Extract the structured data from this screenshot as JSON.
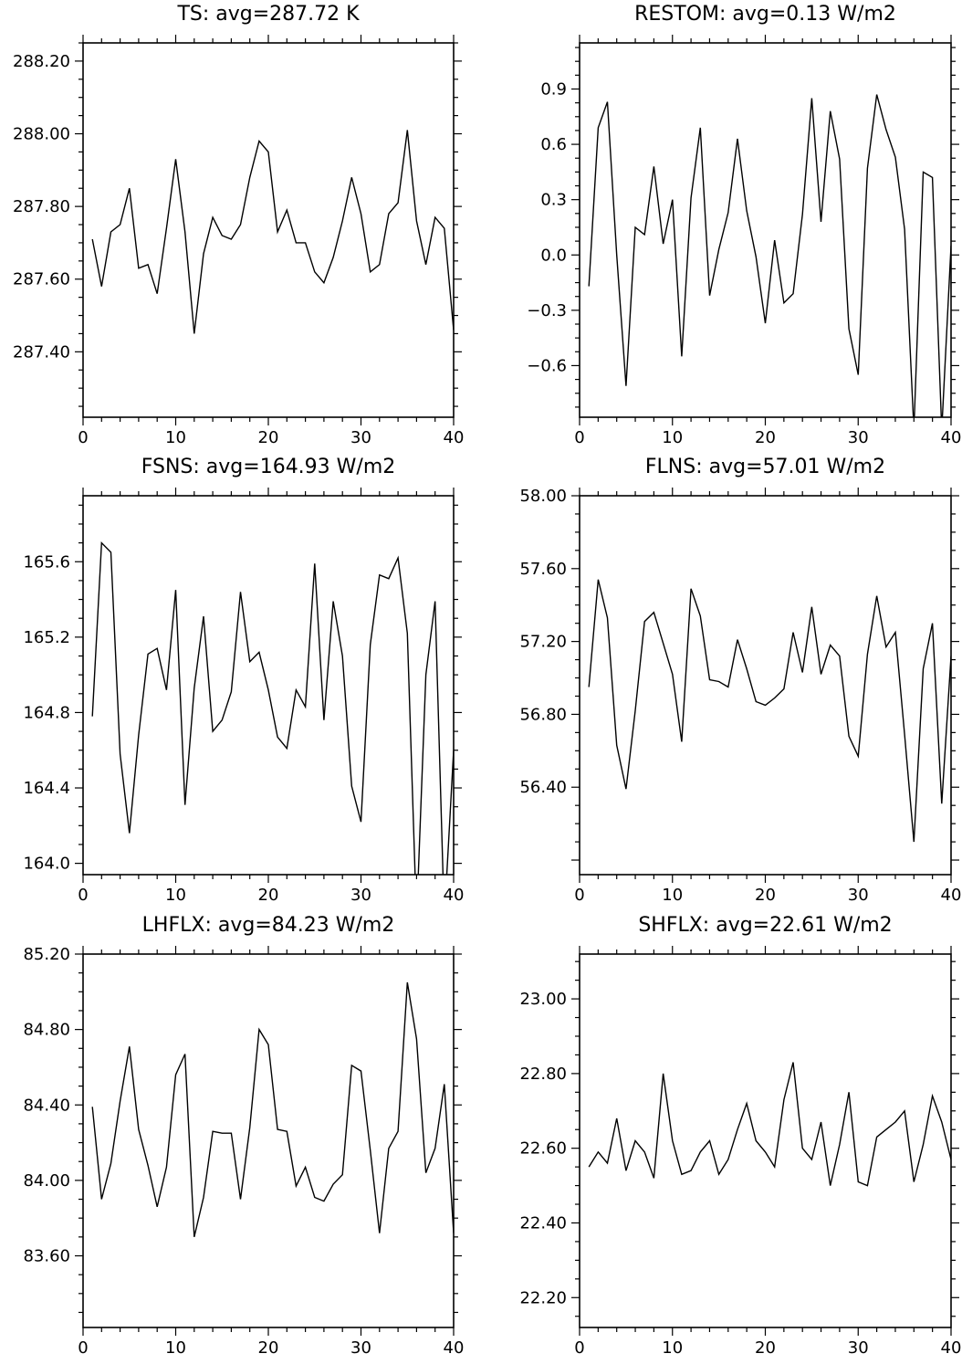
{
  "chart_data": [
    {
      "type": "line",
      "title": "TS: avg=287.72 K",
      "x": [
        1,
        2,
        3,
        4,
        5,
        6,
        7,
        8,
        9,
        10,
        11,
        12,
        13,
        14,
        15,
        16,
        17,
        18,
        19,
        20,
        21,
        22,
        23,
        24,
        25,
        26,
        27,
        28,
        29,
        30,
        31,
        32,
        33,
        34,
        35,
        36,
        37,
        38,
        39,
        40
      ],
      "values": [
        287.71,
        287.58,
        287.73,
        287.75,
        287.85,
        287.63,
        287.64,
        287.56,
        287.74,
        287.93,
        287.73,
        287.45,
        287.67,
        287.77,
        287.72,
        287.71,
        287.75,
        287.88,
        287.98,
        287.95,
        287.73,
        287.79,
        287.7,
        287.7,
        287.62,
        287.59,
        287.66,
        287.76,
        287.88,
        287.78,
        287.62,
        287.64,
        287.78,
        287.81,
        288.01,
        287.76,
        287.64,
        287.77,
        287.74,
        287.46
      ],
      "xlim": [
        0,
        40
      ],
      "ylim": [
        287.22,
        288.25
      ],
      "xticks": [
        0,
        10,
        20,
        30,
        40
      ],
      "xtick_labels": [
        "0",
        "10",
        "20",
        "30",
        "40"
      ],
      "yticks": [
        287.4,
        287.6,
        287.8,
        288.0,
        288.2
      ],
      "ytick_labels": [
        "287.40",
        "287.60",
        "287.80",
        "288.00",
        "288.20"
      ]
    },
    {
      "type": "line",
      "title": "RESTOM: avg=0.13 W/m2",
      "x": [
        1,
        2,
        3,
        4,
        5,
        6,
        7,
        8,
        9,
        10,
        11,
        12,
        13,
        14,
        15,
        16,
        17,
        18,
        19,
        20,
        21,
        22,
        23,
        24,
        25,
        26,
        27,
        28,
        29,
        30,
        31,
        32,
        33,
        34,
        35,
        36,
        37,
        38,
        39,
        40
      ],
      "values": [
        -0.17,
        0.69,
        0.83,
        0.0,
        -0.71,
        0.15,
        0.11,
        0.48,
        0.06,
        0.3,
        -0.55,
        0.31,
        0.69,
        -0.22,
        0.03,
        0.23,
        0.63,
        0.24,
        -0.01,
        -0.37,
        0.08,
        -0.26,
        -0.21,
        0.22,
        0.85,
        0.18,
        0.78,
        0.52,
        -0.4,
        -0.65,
        0.47,
        0.87,
        0.68,
        0.53,
        0.14,
        -0.95,
        0.45,
        0.42,
        -0.95,
        0.05
      ],
      "xlim": [
        0,
        40
      ],
      "ylim": [
        -0.88,
        1.15
      ],
      "xticks": [
        0,
        10,
        20,
        30,
        40
      ],
      "xtick_labels": [
        "0",
        "10",
        "20",
        "30",
        "40"
      ],
      "yticks": [
        -0.6,
        -0.3,
        0.0,
        0.3,
        0.6,
        0.9
      ],
      "ytick_labels": [
        "−0.6",
        "−0.3",
        "0.0",
        "0.3",
        "0.6",
        "0.9"
      ]
    },
    {
      "type": "line",
      "title": "FSNS: avg=164.93 W/m2",
      "x": [
        1,
        2,
        3,
        4,
        5,
        6,
        7,
        8,
        9,
        10,
        11,
        12,
        13,
        14,
        15,
        16,
        17,
        18,
        19,
        20,
        21,
        22,
        23,
        24,
        25,
        26,
        27,
        28,
        29,
        30,
        31,
        32,
        33,
        34,
        35,
        36,
        37,
        38,
        39,
        40
      ],
      "values": [
        164.78,
        165.7,
        165.65,
        164.58,
        164.16,
        164.68,
        165.11,
        165.14,
        164.92,
        165.45,
        164.31,
        164.93,
        165.31,
        164.7,
        164.76,
        164.91,
        165.44,
        165.07,
        165.12,
        164.92,
        164.67,
        164.61,
        164.92,
        164.83,
        165.59,
        164.76,
        165.39,
        165.1,
        164.41,
        164.22,
        165.16,
        165.53,
        165.51,
        165.62,
        165.22,
        163.7,
        165.0,
        165.39,
        163.7,
        164.6
      ],
      "xlim": [
        0,
        40
      ],
      "ylim": [
        163.94,
        165.95
      ],
      "xticks": [
        0,
        10,
        20,
        30,
        40
      ],
      "xtick_labels": [
        "0",
        "10",
        "20",
        "30",
        "40"
      ],
      "yticks": [
        164.0,
        164.4,
        164.8,
        165.2,
        165.6
      ],
      "ytick_labels": [
        "164.0",
        "164.4",
        "164.8",
        "165.2",
        "165.6"
      ]
    },
    {
      "type": "line",
      "title": "FLNS: avg=57.01 W/m2",
      "x": [
        1,
        2,
        3,
        4,
        5,
        6,
        7,
        8,
        9,
        10,
        11,
        12,
        13,
        14,
        15,
        16,
        17,
        18,
        19,
        20,
        21,
        22,
        23,
        24,
        25,
        26,
        27,
        28,
        29,
        30,
        31,
        32,
        33,
        34,
        35,
        36,
        37,
        38,
        39,
        40
      ],
      "values": [
        56.95,
        57.54,
        57.33,
        56.63,
        56.39,
        56.82,
        57.31,
        57.36,
        57.19,
        57.02,
        56.65,
        57.49,
        57.34,
        56.99,
        56.98,
        56.95,
        57.21,
        57.05,
        56.87,
        56.85,
        56.89,
        56.94,
        57.25,
        57.03,
        57.39,
        57.02,
        57.18,
        57.12,
        56.68,
        56.57,
        57.13,
        57.45,
        57.17,
        57.25,
        56.69,
        56.1,
        57.05,
        57.3,
        56.31,
        57.12
      ],
      "xlim": [
        0,
        40
      ],
      "ylim": [
        55.92,
        58.0
      ],
      "xticks": [
        0,
        10,
        20,
        30,
        40
      ],
      "xtick_labels": [
        "0",
        "10",
        "20",
        "30",
        "40"
      ],
      "yticks": [
        56.4,
        56.8,
        57.2,
        57.6,
        58.0
      ],
      "ytick_labels": [
        "56.40",
        "56.80",
        "57.20",
        "57.60",
        "58.00"
      ]
    },
    {
      "type": "line",
      "title": "LHFLX: avg=84.23 W/m2",
      "x": [
        1,
        2,
        3,
        4,
        5,
        6,
        7,
        8,
        9,
        10,
        11,
        12,
        13,
        14,
        15,
        16,
        17,
        18,
        19,
        20,
        21,
        22,
        23,
        24,
        25,
        26,
        27,
        28,
        29,
        30,
        31,
        32,
        33,
        34,
        35,
        36,
        37,
        38,
        39,
        40
      ],
      "values": [
        84.39,
        83.9,
        84.09,
        84.42,
        84.71,
        84.27,
        84.08,
        83.86,
        84.07,
        84.56,
        84.67,
        83.7,
        83.91,
        84.26,
        84.25,
        84.25,
        83.9,
        84.28,
        84.8,
        84.72,
        84.27,
        84.26,
        83.97,
        84.07,
        83.91,
        83.89,
        83.98,
        84.03,
        84.61,
        84.58,
        84.16,
        83.72,
        84.17,
        84.26,
        85.05,
        84.75,
        84.04,
        84.17,
        84.51,
        83.72
      ],
      "xlim": [
        0,
        40
      ],
      "ylim": [
        83.22,
        85.2
      ],
      "xticks": [
        0,
        10,
        20,
        30,
        40
      ],
      "xtick_labels": [
        "0",
        "10",
        "20",
        "30",
        "40"
      ],
      "yticks": [
        83.6,
        84.0,
        84.4,
        84.8,
        85.2
      ],
      "ytick_labels": [
        "83.60",
        "84.00",
        "84.40",
        "84.80",
        "85.20"
      ]
    },
    {
      "type": "line",
      "title": "SHFLX: avg=22.61 W/m2",
      "x": [
        1,
        2,
        3,
        4,
        5,
        6,
        7,
        8,
        9,
        10,
        11,
        12,
        13,
        14,
        15,
        16,
        17,
        18,
        19,
        20,
        21,
        22,
        23,
        24,
        25,
        26,
        27,
        28,
        29,
        30,
        31,
        32,
        33,
        34,
        35,
        36,
        37,
        38,
        39,
        40
      ],
      "values": [
        22.55,
        22.59,
        22.56,
        22.68,
        22.54,
        22.62,
        22.59,
        22.52,
        22.8,
        22.62,
        22.53,
        22.54,
        22.59,
        22.62,
        22.53,
        22.57,
        22.65,
        22.72,
        22.62,
        22.59,
        22.55,
        22.73,
        22.83,
        22.6,
        22.57,
        22.67,
        22.5,
        22.61,
        22.75,
        22.51,
        22.5,
        22.63,
        22.65,
        22.67,
        22.7,
        22.51,
        22.61,
        22.74,
        22.67,
        22.57
      ],
      "xlim": [
        0,
        40
      ],
      "ylim": [
        22.12,
        23.12
      ],
      "xticks": [
        0,
        10,
        20,
        30,
        40
      ],
      "xtick_labels": [
        "0",
        "10",
        "20",
        "30",
        "40"
      ],
      "yticks": [
        22.2,
        22.4,
        22.6,
        22.8,
        23.0
      ],
      "ytick_labels": [
        "22.20",
        "22.40",
        "22.60",
        "22.80",
        "23.00"
      ]
    }
  ]
}
